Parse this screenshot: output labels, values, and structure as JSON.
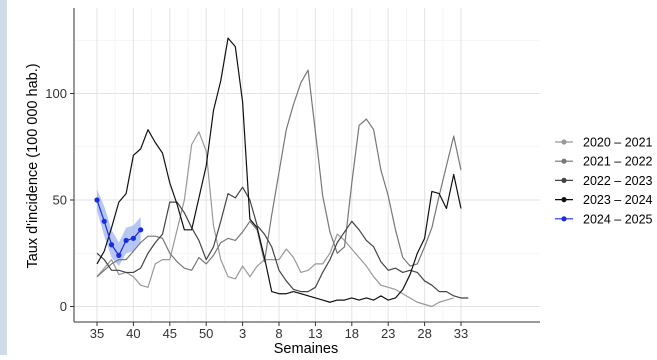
{
  "chart_data": {
    "type": "line",
    "title": "",
    "xlabel": "Semaines",
    "ylabel": "Taux d'incidence (100 000 hab.)",
    "x_tick_labels": [
      "35",
      "40",
      "45",
      "50",
      "3",
      "8",
      "13",
      "18",
      "23",
      "28",
      "33"
    ],
    "y_tick_labels": [
      "0",
      "50",
      "100"
    ],
    "ylim": [
      -8,
      138
    ],
    "grid": true,
    "legend_position": "right",
    "weeks": [
      "35",
      "36",
      "37",
      "38",
      "39",
      "40",
      "41",
      "42",
      "43",
      "44",
      "45",
      "46",
      "47",
      "48",
      "49",
      "50",
      "51",
      "52",
      "1",
      "2",
      "3",
      "4",
      "5",
      "6",
      "7",
      "8",
      "9",
      "10",
      "11",
      "12",
      "13",
      "14",
      "15",
      "16",
      "17",
      "18",
      "19",
      "20",
      "21",
      "22",
      "23",
      "24",
      "25",
      "26",
      "27",
      "28",
      "29",
      "30",
      "31",
      "32",
      "33",
      "34"
    ],
    "series": [
      {
        "name": "2020 – 2021",
        "color": "#999999",
        "dots": false,
        "values": [
          14,
          18,
          22,
          15,
          16,
          14,
          10,
          9,
          20,
          22,
          22,
          36,
          50,
          76,
          82,
          73,
          38,
          22,
          14,
          13,
          19,
          14,
          19,
          22,
          22,
          22,
          27,
          23,
          16,
          17,
          20,
          20,
          25,
          34,
          31,
          27,
          23,
          19,
          14,
          10,
          9,
          8,
          6,
          4,
          2,
          1,
          0,
          2,
          3,
          4,
          null,
          null
        ]
      },
      {
        "name": "2021 – 2022",
        "color": "#777777",
        "dots": false,
        "values": [
          14,
          17,
          20,
          22,
          22,
          26,
          30,
          33,
          33,
          32,
          25,
          21,
          18,
          17,
          23,
          20,
          24,
          30,
          32,
          31,
          35,
          40,
          36,
          21,
          43,
          63,
          83,
          95,
          105,
          111,
          82,
          52,
          35,
          25,
          28,
          58,
          85,
          88,
          83,
          64,
          52,
          36,
          23,
          19,
          20,
          28,
          37,
          52,
          66,
          80,
          64,
          null
        ]
      },
      {
        "name": "2022 – 2023",
        "color": "#444444",
        "dots": false,
        "values": [
          25,
          22,
          17,
          17,
          16,
          16,
          18,
          25,
          30,
          34,
          49,
          49,
          44,
          37,
          31,
          22,
          28,
          40,
          53,
          51,
          56,
          50,
          38,
          34,
          28,
          17,
          12,
          8,
          7,
          7,
          9,
          16,
          22,
          30,
          35,
          40,
          36,
          31,
          28,
          21,
          17,
          18,
          16,
          17,
          16,
          12,
          10,
          7,
          7,
          5,
          4,
          4
        ]
      },
      {
        "name": "2023 – 2024",
        "color": "#111111",
        "dots": false,
        "values": [
          20,
          26,
          37,
          49,
          53,
          71,
          74,
          83,
          77,
          72,
          58,
          48,
          36,
          36,
          51,
          66,
          92,
          106,
          126,
          122,
          96,
          41,
          37,
          23,
          7,
          6,
          6,
          7,
          6,
          5,
          4,
          3,
          2,
          3,
          3,
          4,
          3,
          4,
          3,
          5,
          3,
          4,
          8,
          15,
          25,
          32,
          54,
          53,
          46,
          62,
          46,
          null
        ]
      },
      {
        "name": "2024 – 2025",
        "color": "#1a2ce0",
        "dots": true,
        "values": [
          50,
          40,
          29,
          24,
          31,
          32,
          36,
          null,
          null,
          null,
          null,
          null,
          null,
          null,
          null,
          null,
          null,
          null,
          null,
          null,
          null,
          null,
          null,
          null,
          null,
          null,
          null,
          null,
          null,
          null,
          null,
          null,
          null,
          null,
          null,
          null,
          null,
          null,
          null,
          null,
          null,
          null,
          null,
          null,
          null,
          null,
          null,
          null,
          null,
          null,
          null,
          null
        ],
        "band_lower": [
          45,
          33,
          23,
          19,
          25,
          26,
          30
        ],
        "band_upper": [
          55,
          47,
          36,
          30,
          37,
          38,
          42
        ],
        "band_color": "#9db4f2"
      }
    ]
  }
}
